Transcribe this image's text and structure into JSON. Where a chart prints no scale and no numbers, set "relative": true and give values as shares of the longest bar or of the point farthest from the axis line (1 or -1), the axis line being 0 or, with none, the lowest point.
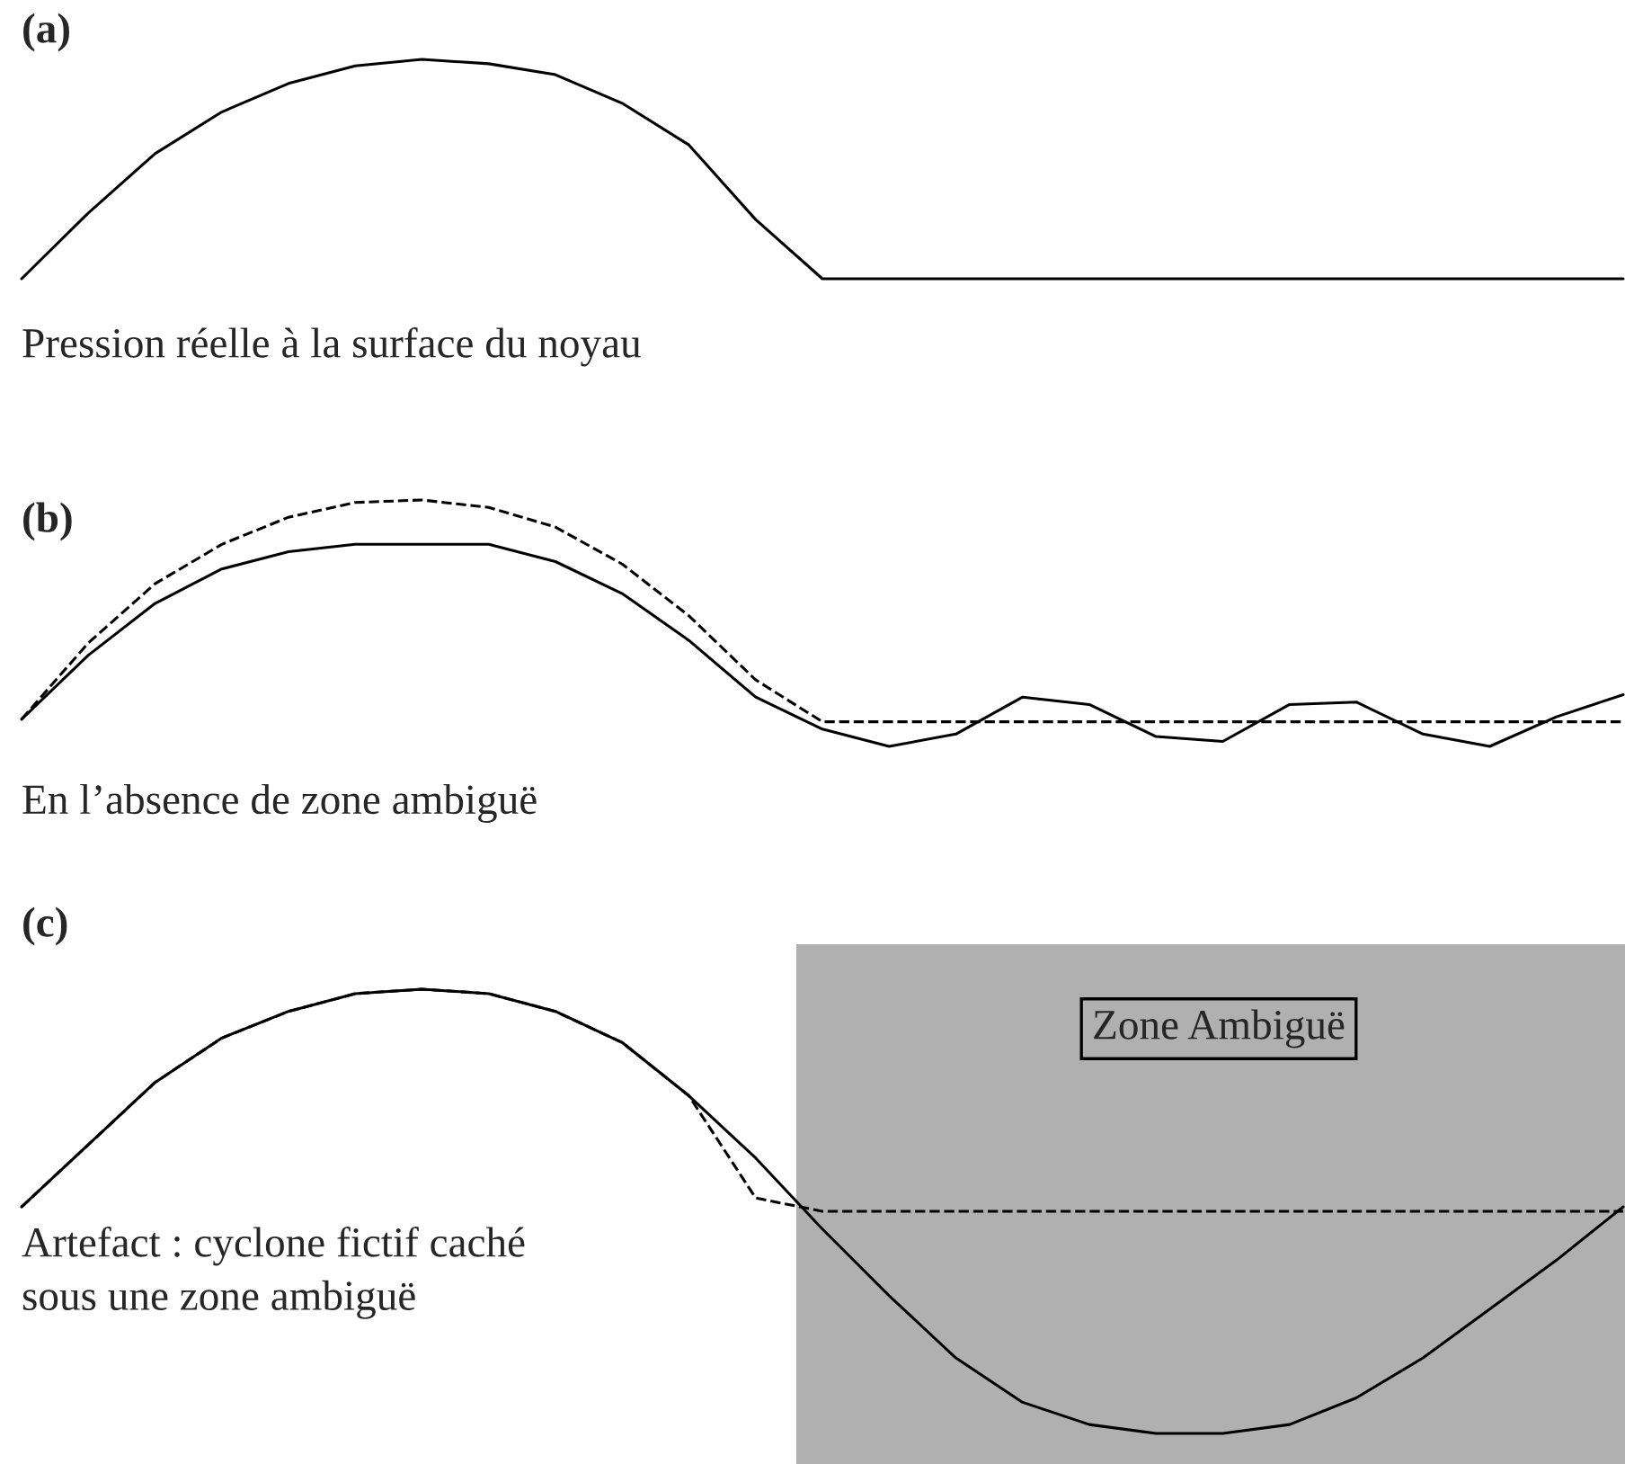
{
  "chart_data": [
    {
      "type": "line",
      "title": "(a)",
      "relative": true,
      "categories": [
        null,
        null,
        null,
        null,
        null,
        null,
        null,
        null,
        null,
        null,
        null,
        null,
        null,
        null,
        null,
        null,
        null,
        null,
        null,
        null,
        null,
        null,
        null,
        null,
        null
      ],
      "series": [
        {
          "color": "#000000",
          "line_style": "solid",
          "values": [
            0,
            0.3,
            0.57,
            0.76,
            0.89,
            0.97,
            1.0,
            0.98,
            0.93,
            0.8,
            0.61,
            0.27,
            0,
            0,
            0,
            0,
            0,
            0,
            0,
            0,
            0,
            0,
            0,
            0,
            0
          ]
        }
      ],
      "annotations": [
        "Pression réelle à la surface du noyau"
      ]
    },
    {
      "type": "line",
      "title": "(b)",
      "relative": true,
      "categories": [
        null,
        null,
        null,
        null,
        null,
        null,
        null,
        null,
        null,
        null,
        null,
        null,
        null,
        null,
        null,
        null,
        null,
        null,
        null,
        null,
        null,
        null,
        null,
        null,
        null
      ],
      "series": [
        {
          "color": "#000000",
          "line_style": "dashed",
          "values": [
            0.11,
            0.42,
            0.66,
            0.82,
            0.93,
            0.99,
            1.0,
            0.97,
            0.89,
            0.74,
            0.53,
            0.27,
            0.1,
            0.1,
            0.1,
            0.1,
            0.1,
            0.1,
            0.1,
            0.1,
            0.1,
            0.1,
            0.1,
            0.1,
            0.1
          ]
        },
        {
          "color": "#000000",
          "line_style": "solid",
          "values": [
            0.11,
            0.37,
            0.58,
            0.72,
            0.79,
            0.82,
            0.82,
            0.82,
            0.75,
            0.62,
            0.43,
            0.2,
            0.07,
            0,
            0.05,
            0.2,
            0.17,
            0.04,
            0.02,
            0.17,
            0.18,
            0.05,
            0,
            0.12,
            0.21
          ]
        }
      ],
      "annotations": [
        "En l’absence de zone ambiguë"
      ]
    },
    {
      "type": "line",
      "title": "(c)",
      "relative": true,
      "categories": [
        null,
        null,
        null,
        null,
        null,
        null,
        null,
        null,
        null,
        null,
        null,
        null,
        null,
        null,
        null,
        null,
        null,
        null,
        null,
        null,
        null,
        null,
        null,
        null,
        null
      ],
      "series": [
        {
          "color": "#000000",
          "line_style": "dashed",
          "values": [
            0.51,
            0.65,
            0.79,
            0.89,
            0.95,
            0.99,
            1.0,
            0.99,
            0.95,
            0.88,
            0.76,
            0.53,
            0.5,
            0.5,
            0.5,
            0.5,
            0.5,
            0.5,
            0.5,
            0.5,
            0.5,
            0.5,
            0.5,
            0.5,
            0.5
          ]
        },
        {
          "color": "#000000",
          "line_style": "solid",
          "values": [
            0.51,
            0.65,
            0.79,
            0.89,
            0.95,
            0.99,
            1.0,
            0.99,
            0.95,
            0.88,
            0.76,
            0.62,
            0.46,
            0.31,
            0.17,
            0.07,
            0.02,
            0,
            0,
            0.02,
            0.08,
            0.17,
            0.28,
            0.39,
            0.51
          ]
        }
      ],
      "annotations": [
        "Artefact : cyclone fictif caché\nsous une zone ambiguë",
        "Zone Ambiguë"
      ]
    }
  ]
}
